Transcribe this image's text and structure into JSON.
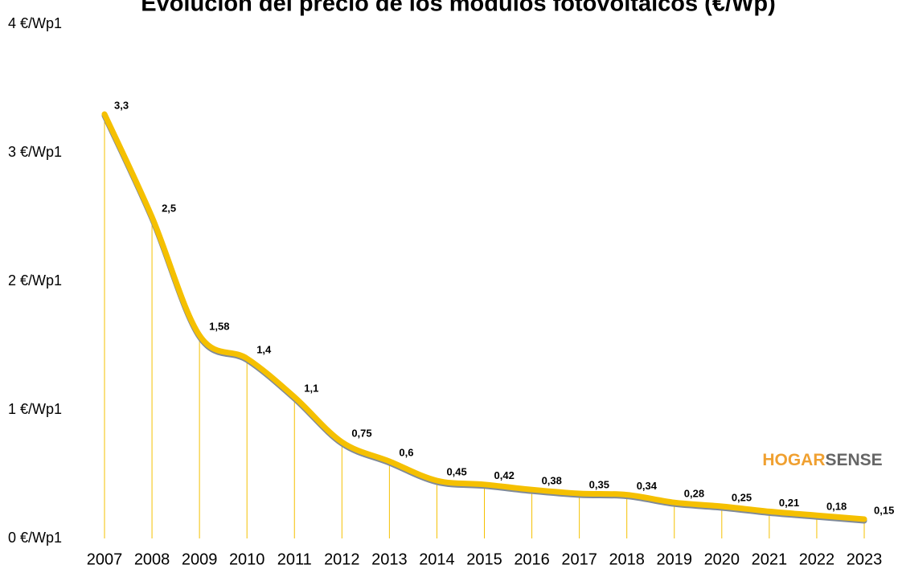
{
  "chart_data": {
    "type": "line",
    "title": "Evolución del precio de los módulos fotovoltaicos (€/Wp)",
    "categories": [
      "2007",
      "2008",
      "2009",
      "2010",
      "2011",
      "2012",
      "2013",
      "2014",
      "2015",
      "2016",
      "2017",
      "2018",
      "2019",
      "2020",
      "2021",
      "2022",
      "2023"
    ],
    "series": [
      {
        "color": "#f5c000",
        "values": [
          3.3,
          2.5,
          1.58,
          1.4,
          1.1,
          0.75,
          0.6,
          0.45,
          0.42,
          0.38,
          0.35,
          0.34,
          0.28,
          0.25,
          0.21,
          0.18,
          0.15
        ],
        "value_labels": [
          "3,3",
          "2,5",
          "1,58",
          "1,4",
          "1,1",
          "0,75",
          "0,6",
          "0,45",
          "0,42",
          "0,38",
          "0,35",
          "0,34",
          "0,28",
          "0,25",
          "0,21",
          "0,18",
          "0,15"
        ]
      }
    ],
    "ylim": [
      0,
      4
    ],
    "yticks": [
      {
        "value": 0,
        "label": "0 €/Wp1"
      },
      {
        "value": 1,
        "label": "1 €/Wp1"
      },
      {
        "value": 2,
        "label": "2 €/Wp1"
      },
      {
        "value": 3,
        "label": "3 €/Wp1"
      },
      {
        "value": 4,
        "label": "4 €/Wp1"
      }
    ],
    "grid": false,
    "watermark": [
      {
        "text": "HOGAR",
        "color": "#f0a030"
      },
      {
        "text": "SENSE",
        "color": "#666666"
      }
    ]
  }
}
